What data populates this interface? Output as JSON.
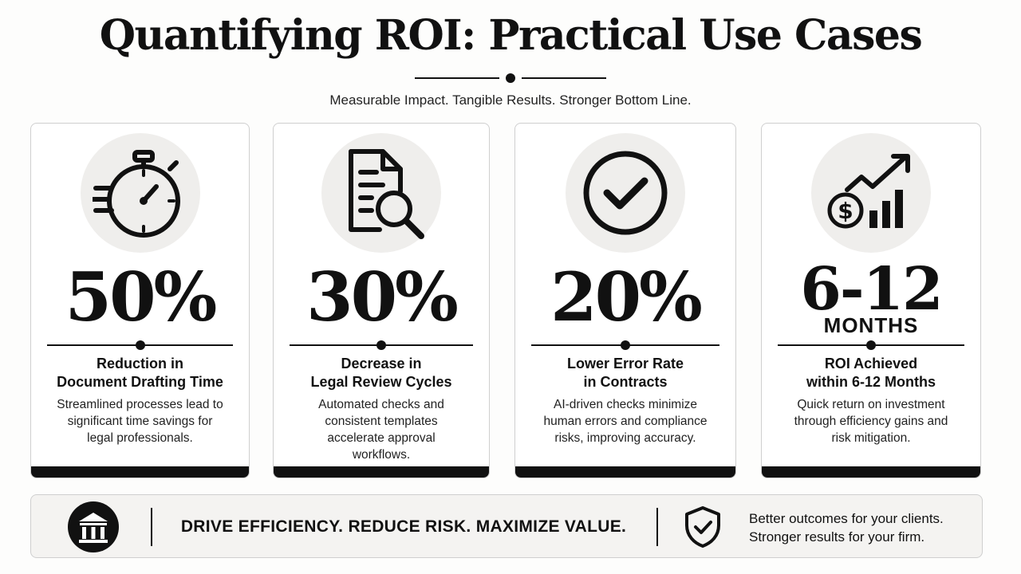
{
  "header": {
    "title": "Quantifying ROI: Practical Use Cases",
    "subtitle": "Measurable Impact. Tangible Results. Stronger Bottom Line."
  },
  "cards": [
    {
      "icon": "stopwatch-icon",
      "stat": "50%",
      "title_line1": "Reduction in",
      "title_line2": "Document Drafting Time",
      "desc_lines": [
        "Streamlined processes lead to",
        "significant time savings for",
        "legal professionals."
      ]
    },
    {
      "icon": "document-search-icon",
      "stat": "30%",
      "title_line1": "Decrease in",
      "title_line2": "Legal Review Cycles",
      "desc_lines": [
        "Automated checks and",
        "consistent templates",
        "accelerate approval",
        "workflows."
      ]
    },
    {
      "icon": "checkmark-circle-icon",
      "stat": "20%",
      "title_line1": "Lower Error Rate",
      "title_line2": "in Contracts",
      "desc_lines": [
        "AI-driven checks minimize",
        "human errors and compliance",
        "risks, improving accuracy."
      ]
    },
    {
      "icon": "money-growth-chart-icon",
      "stat": "6-12",
      "unit": "MONTHS",
      "title_line1": "ROI Achieved",
      "title_line2": "within 6-12 Months",
      "desc_lines": [
        "Quick return on investment",
        "through efficiency gains and",
        "risk mitigation."
      ]
    }
  ],
  "footer": {
    "left_icon": "bank-icon",
    "tagline": "DRIVE EFFICIENCY. REDUCE RISK. MAXIMIZE VALUE.",
    "right_icon": "shield-check-icon",
    "note_line1": "Better outcomes for your clients.",
    "note_line2": "Stronger results for your firm."
  },
  "colors": {
    "ink": "#111111",
    "icon_bg": "#efeeec",
    "card_border": "#cfcfcf",
    "footer_bg": "#f4f3f1"
  }
}
